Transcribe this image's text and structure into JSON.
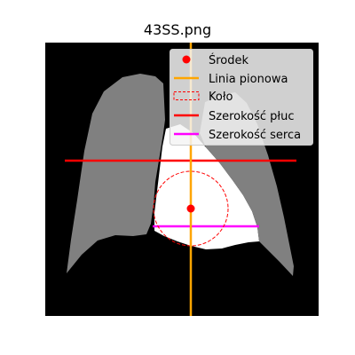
{
  "figure": {
    "title": "43SS.png"
  },
  "legend": {
    "placement": "upper-right",
    "entries": [
      {
        "id": "center",
        "label": "Środek",
        "color": "#ff0000",
        "marker": "dot"
      },
      {
        "id": "vertical",
        "label": "Linia pionowa",
        "color": "#ffa500",
        "marker": "line"
      },
      {
        "id": "circle",
        "label": "Koło",
        "color": "#ff0000",
        "marker": "dashed-box"
      },
      {
        "id": "lung",
        "label": "Szerokość płuc",
        "color": "#ff0000",
        "marker": "line"
      },
      {
        "id": "heart",
        "label": "Szerokość serca",
        "color": "#ff00ff",
        "marker": "line"
      }
    ]
  },
  "colors": {
    "background": "#000000",
    "lungs": "#808080",
    "heart": "#ffffff"
  }
}
